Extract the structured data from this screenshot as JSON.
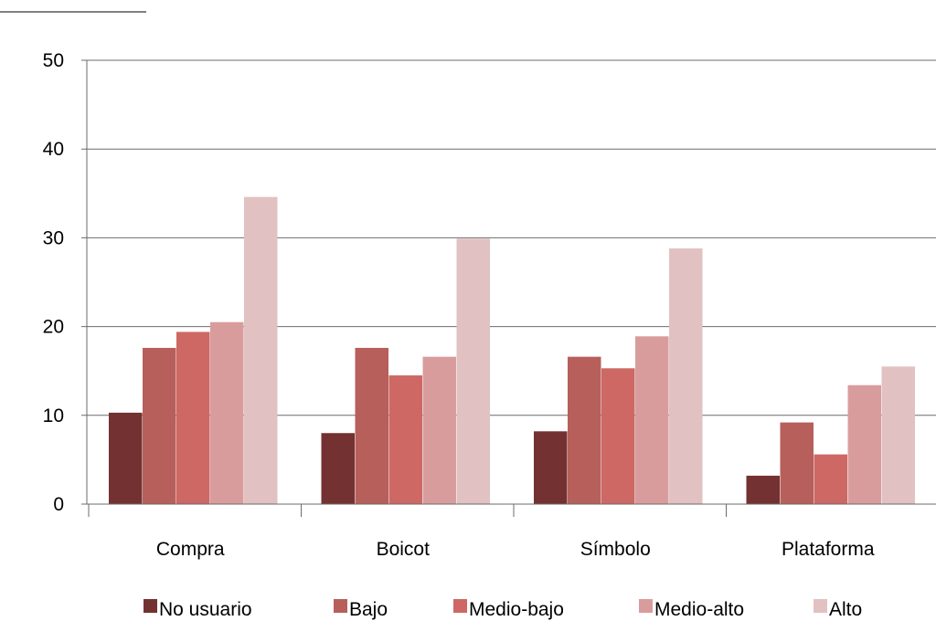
{
  "chart_data": {
    "type": "bar",
    "title": "",
    "xlabel": "",
    "ylabel": "",
    "categories": [
      "Compra",
      "Boicot",
      "Símbolo",
      "Plataforma"
    ],
    "ylim": [
      0,
      50
    ],
    "yticks": [
      0,
      10,
      20,
      30,
      40,
      50
    ],
    "grid": true,
    "legend_position": "bottom",
    "series": [
      {
        "name": "No usuario",
        "color": "#743131",
        "values": [
          10.3,
          8.0,
          8.2,
          3.2
        ]
      },
      {
        "name": "Bajo",
        "color": "#b75f5b",
        "values": [
          17.6,
          17.6,
          16.6,
          9.2
        ]
      },
      {
        "name": "Medio-bajo",
        "color": "#cd6864",
        "values": [
          19.4,
          14.5,
          15.3,
          5.6
        ]
      },
      {
        "name": "Medio-alto",
        "color": "#d99c9d",
        "values": [
          20.5,
          16.6,
          18.9,
          13.4
        ]
      },
      {
        "name": "Alto",
        "color": "#e1c1c1",
        "values": [
          34.6,
          29.9,
          28.8,
          15.5
        ]
      }
    ]
  }
}
